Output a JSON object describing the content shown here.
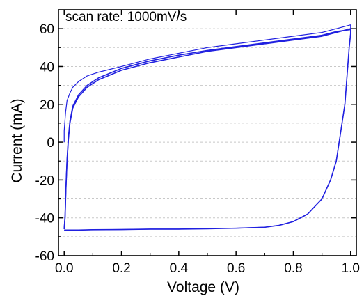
{
  "chart_data": {
    "type": "line",
    "annotation": "scan rate: 1000mV/s",
    "xlabel": "Voltage (V)",
    "ylabel": "Current (mA)",
    "xlim": [
      -0.02,
      1.02
    ],
    "ylim": [
      -60,
      70
    ],
    "xticks": [
      "0.0",
      "0.2",
      "0.4",
      "0.6",
      "0.8",
      "1.0"
    ],
    "xtick_values": [
      0.0,
      0.2,
      0.4,
      0.6,
      0.8,
      1.0
    ],
    "yticks": [
      "-60",
      "-40",
      "-20",
      "0",
      "20",
      "40",
      "60"
    ],
    "ytick_values": [
      -60,
      -40,
      -20,
      0,
      20,
      40,
      60
    ],
    "grid": "horizontal dashed",
    "color": "#2020e0",
    "series": [
      {
        "x": [
          0.0,
          0.0,
          0.005,
          0.01,
          0.02,
          0.03,
          0.05,
          0.08,
          0.12,
          0.2,
          0.3,
          0.4,
          0.5,
          0.6,
          0.7,
          0.8,
          0.9,
          0.95,
          1.0,
          1.0,
          0.995,
          0.99,
          0.985,
          0.98,
          0.97,
          0.96,
          0.95,
          0.93,
          0.9,
          0.85,
          0.8,
          0.75,
          0.7,
          0.6,
          0.5,
          0.4,
          0.3,
          0.2,
          0.1,
          0.05,
          0.02,
          0.0
        ],
        "y": [
          0,
          6,
          16,
          22,
          26,
          29,
          32,
          35,
          37,
          40,
          44,
          47,
          50,
          52,
          54,
          56,
          58,
          60,
          62,
          58,
          50,
          40,
          30,
          20,
          10,
          0,
          -10,
          -20,
          -30,
          -38,
          -42,
          -44,
          -45,
          -45.5,
          -45.5,
          -46,
          -46,
          -46.2,
          -46.3,
          -46.5,
          -46.5,
          -46.5
        ]
      },
      {
        "x": [
          0.0,
          0.003,
          0.006,
          0.01,
          0.015,
          0.02,
          0.03,
          0.05,
          0.08,
          0.12,
          0.2,
          0.3,
          0.4,
          0.5,
          0.6,
          0.7,
          0.8,
          0.9,
          0.95,
          1.0,
          1.0,
          0.995,
          0.99,
          0.985,
          0.98,
          0.97,
          0.96,
          0.95,
          0.93,
          0.9,
          0.85,
          0.8,
          0.75,
          0.7,
          0.6,
          0.5,
          0.4,
          0.3,
          0.2,
          0.1,
          0.05,
          0.02,
          0.0
        ],
        "y": [
          -46,
          -40,
          -25,
          -10,
          2,
          10,
          18,
          24,
          29,
          33,
          38,
          42,
          45,
          48,
          50,
          52,
          54,
          56,
          58,
          60,
          57,
          50,
          40,
          30,
          20,
          10,
          0,
          -10,
          -20,
          -30,
          -38,
          -42,
          -44,
          -45,
          -45.5,
          -45.8,
          -46,
          -46,
          -46.2,
          -46.3,
          -46.5,
          -46.5,
          -46.5
        ]
      },
      {
        "x": [
          0.0,
          0.003,
          0.006,
          0.01,
          0.015,
          0.02,
          0.03,
          0.05,
          0.08,
          0.12,
          0.2,
          0.3,
          0.4,
          0.5,
          0.6,
          0.7,
          0.8,
          0.9,
          0.95,
          1.0
        ],
        "y": [
          -46,
          -39,
          -24,
          -9,
          3,
          11,
          19,
          25,
          30,
          34,
          39,
          43,
          46,
          48.5,
          50.5,
          52.5,
          54.5,
          56.5,
          58.5,
          59.5
        ]
      }
    ]
  }
}
